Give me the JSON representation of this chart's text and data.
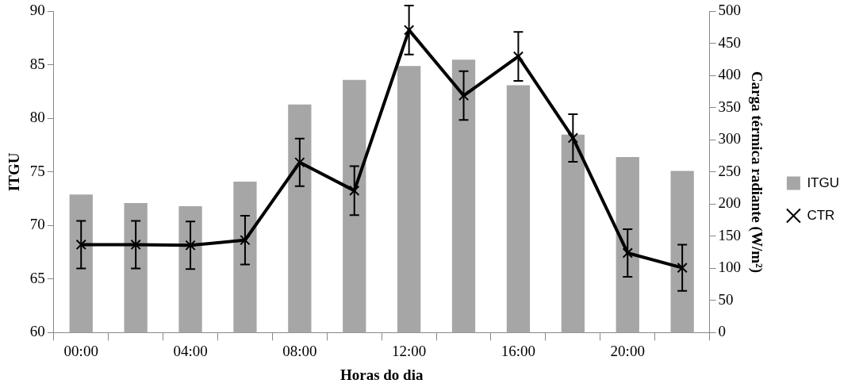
{
  "chart_data": {
    "type": "bar",
    "xlabel": "Horas do dia",
    "ylabel": "ITGU",
    "y2label": "Carga térmica radiante (W/m²)",
    "categories": [
      "00:00",
      null,
      "04:00",
      null,
      "08:00",
      null,
      "12:00",
      null,
      "16:00",
      null,
      "20:00",
      null
    ],
    "series": [
      {
        "name": "ITGU",
        "color": "#a6a6a6",
        "values": [
          72.9,
          72.1,
          71.8,
          74.1,
          81.3,
          83.6,
          84.9,
          85.5,
          83.1,
          78.5,
          76.4,
          75.1
        ]
      },
      {
        "name": "CTR",
        "type": "line",
        "axis": "y2",
        "color": "#000000",
        "marker": "cross",
        "values": [
          137,
          137,
          136,
          144,
          265,
          221,
          471,
          369,
          430,
          303,
          124,
          101
        ],
        "errors": [
          37,
          37,
          37,
          38,
          37,
          38,
          38,
          38,
          38,
          37,
          37,
          36
        ]
      }
    ],
    "ylim": [
      60,
      90
    ],
    "yticks": [
      60,
      65,
      70,
      75,
      80,
      85,
      90
    ],
    "y2lim": [
      0,
      500
    ],
    "y2ticks": [
      0,
      50,
      100,
      150,
      200,
      250,
      300,
      350,
      400,
      450,
      500
    ],
    "grid": false,
    "legend": "right"
  }
}
